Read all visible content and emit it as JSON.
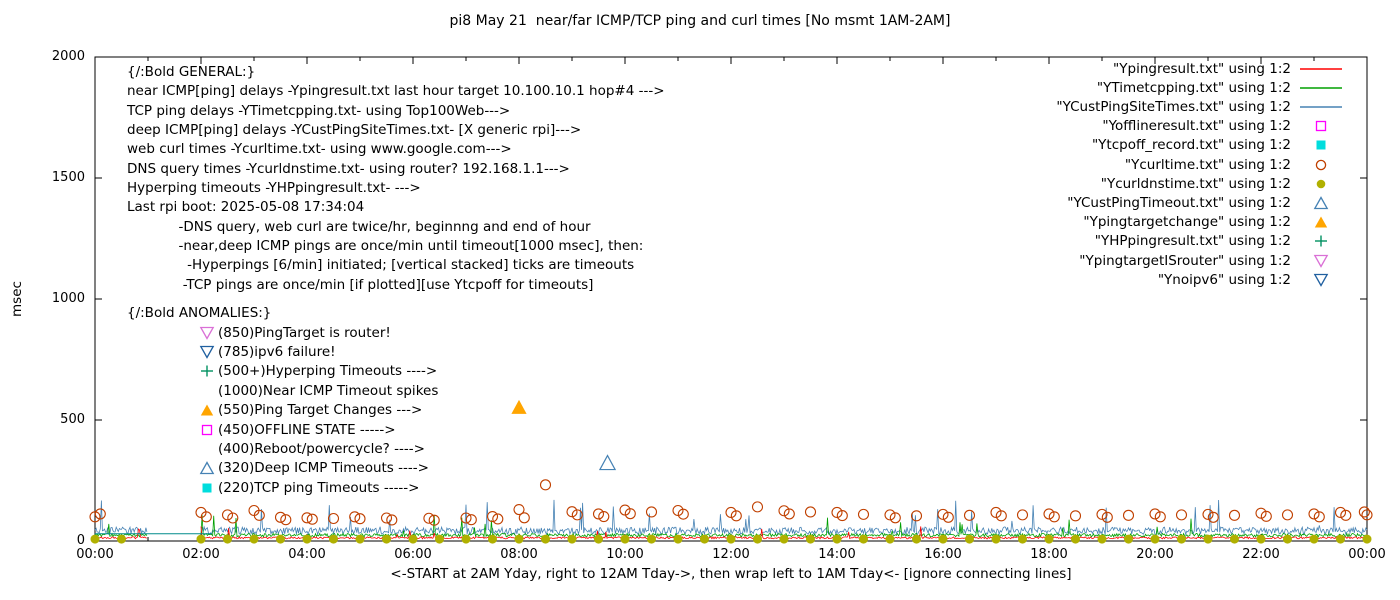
{
  "chart_data": {
    "type": "line+scatter",
    "title": "pi8 May 21  near/far ICMP/TCP ping and curl times [No msmt 1AM-2AM]",
    "xlabel": "<-START at 2AM Yday, right to 12AM Tday->, then wrap left to 1AM Tday<- [ignore connecting lines]",
    "ylabel": "msec",
    "ylim": [
      0,
      2000
    ],
    "xlim_hours": [
      0,
      24
    ],
    "y_ticks": [
      0,
      500,
      1000,
      1500,
      2000
    ],
    "x_tick_labels": [
      "00:00",
      "02:00",
      "04:00",
      "06:00",
      "08:00",
      "10:00",
      "12:00",
      "14:00",
      "16:00",
      "18:00",
      "20:00",
      "22:00",
      "00:00"
    ],
    "x_minor_tick_hours": 1,
    "grid": false,
    "no_measurement_window_hours": [
      1,
      2
    ],
    "legend_position": "top-right",
    "legend": [
      {
        "label": "\"Ypingresult.txt\" using 1:2",
        "marker": "line",
        "color": "#ff0000"
      },
      {
        "label": "\"YTimetcpping.txt\" using 1:2",
        "marker": "line",
        "color": "#00a000"
      },
      {
        "label": "\"YCustPingSiteTimes.txt\" using 1:2",
        "marker": "line",
        "color": "#4682b4"
      },
      {
        "label": "\"Yofflineresult.txt\" using 1:2",
        "marker": "square-open",
        "color": "#ff00ff"
      },
      {
        "label": "\"Ytcpoff_record.txt\" using 1:2",
        "marker": "square-filled",
        "color": "#00dddd"
      },
      {
        "label": "\"Ycurltime.txt\" using 1:2",
        "marker": "circle-open",
        "color": "#c04000"
      },
      {
        "label": "\"Ycurldnstime.txt\" using 1:2",
        "marker": "circle-filled",
        "color": "#b0b000"
      },
      {
        "label": "\"YCustPingTimeout.txt\" using 1:2",
        "marker": "triangle-up-open",
        "color": "#4682b4"
      },
      {
        "label": "\"Ypingtargetchange\" using 1:2",
        "marker": "triangle-up-filled",
        "color": "#ffa500"
      },
      {
        "label": "\"YHPpingresult.txt\" using 1:2",
        "marker": "plus",
        "color": "#009060"
      },
      {
        "label": "\"YpingtargetISrouter\" using 1:2",
        "marker": "triangle-down-open",
        "color": "#da70d6"
      },
      {
        "label": "\"Ynoipv6\" using 1:2",
        "marker": "triangle-down-open",
        "color": "#2060a0"
      }
    ],
    "series": [
      {
        "name": "YCustPingSiteTimes.txt",
        "type": "noisy-line",
        "color": "#4682b4",
        "baseline": 38,
        "noise": 30,
        "spike_chance": 0.035,
        "spike_max": 120,
        "segments": [
          [
            0,
            1
          ],
          [
            2,
            24
          ]
        ]
      },
      {
        "name": "YTimetcpping.txt",
        "type": "noisy-line",
        "color": "#00a000",
        "baseline": 22,
        "noise": 14,
        "spike_chance": 0.02,
        "spike_max": 85,
        "segments": [
          [
            0,
            1
          ],
          [
            2,
            24
          ]
        ]
      },
      {
        "name": "Ypingresult.txt",
        "type": "noisy-line",
        "color": "#ff0000",
        "baseline": 12,
        "noise": 8,
        "spike_chance": 0.012,
        "spike_max": 50,
        "segments": [
          [
            0,
            1
          ],
          [
            2,
            24
          ]
        ]
      },
      {
        "name": "flat-baseline-segment",
        "type": "line",
        "color": "#008b8b",
        "points": [
          [
            0,
            30
          ],
          [
            2.2,
            30
          ]
        ]
      },
      {
        "name": "Ycurltime.txt",
        "type": "scatter",
        "marker": "circle-open",
        "color": "#c04000",
        "size": 5,
        "points": [
          [
            0.0,
            100
          ],
          [
            0.1,
            112
          ],
          [
            2.0,
            118
          ],
          [
            2.1,
            100
          ],
          [
            2.5,
            108
          ],
          [
            2.6,
            95
          ],
          [
            3.0,
            126
          ],
          [
            3.1,
            106
          ],
          [
            3.5,
            98
          ],
          [
            3.6,
            88
          ],
          [
            4.0,
            96
          ],
          [
            4.1,
            90
          ],
          [
            4.5,
            93
          ],
          [
            4.9,
            100
          ],
          [
            5.0,
            92
          ],
          [
            5.5,
            95
          ],
          [
            5.6,
            87
          ],
          [
            6.3,
            94
          ],
          [
            6.4,
            86
          ],
          [
            7.0,
            95
          ],
          [
            7.1,
            88
          ],
          [
            7.5,
            101
          ],
          [
            7.6,
            91
          ],
          [
            8.0,
            130
          ],
          [
            8.1,
            96
          ],
          [
            8.5,
            232
          ],
          [
            9.0,
            121
          ],
          [
            9.1,
            108
          ],
          [
            9.5,
            112
          ],
          [
            9.6,
            101
          ],
          [
            10.0,
            128
          ],
          [
            10.1,
            113
          ],
          [
            10.5,
            120
          ],
          [
            11.0,
            126
          ],
          [
            11.1,
            111
          ],
          [
            12.0,
            118
          ],
          [
            12.1,
            104
          ],
          [
            12.5,
            141
          ],
          [
            13.0,
            125
          ],
          [
            13.1,
            112
          ],
          [
            13.5,
            120
          ],
          [
            14.0,
            118
          ],
          [
            14.1,
            105
          ],
          [
            14.5,
            110
          ],
          [
            15.0,
            108
          ],
          [
            15.1,
            96
          ],
          [
            15.5,
            104
          ],
          [
            16.0,
            110
          ],
          [
            16.1,
            98
          ],
          [
            16.5,
            106
          ],
          [
            17.0,
            118
          ],
          [
            17.1,
            104
          ],
          [
            17.5,
            108
          ],
          [
            18.0,
            112
          ],
          [
            18.1,
            100
          ],
          [
            18.5,
            104
          ],
          [
            19.0,
            110
          ],
          [
            19.1,
            98
          ],
          [
            19.5,
            106
          ],
          [
            20.0,
            112
          ],
          [
            20.1,
            100
          ],
          [
            20.5,
            108
          ],
          [
            21.0,
            110
          ],
          [
            21.1,
            98
          ],
          [
            21.5,
            106
          ],
          [
            22.0,
            115
          ],
          [
            22.1,
            102
          ],
          [
            22.5,
            108
          ],
          [
            23.0,
            112
          ],
          [
            23.1,
            100
          ],
          [
            23.5,
            118
          ],
          [
            23.6,
            106
          ],
          [
            23.95,
            120
          ],
          [
            24.0,
            108
          ]
        ]
      },
      {
        "name": "Ycurldnstime.txt",
        "type": "scatter",
        "marker": "circle-filled",
        "color": "#b0b000",
        "size": 4.5,
        "value": 8,
        "times": [
          0,
          0.5,
          2,
          2.5,
          3,
          3.5,
          4,
          4.5,
          5,
          5.5,
          6,
          6.5,
          7,
          7.5,
          8,
          8.5,
          9,
          9.5,
          10,
          10.5,
          11,
          11.5,
          12,
          12.5,
          13,
          13.5,
          14,
          14.5,
          15,
          15.5,
          16,
          16.5,
          17,
          17.5,
          18,
          18.5,
          19,
          19.5,
          20,
          20.5,
          21,
          21.5,
          22,
          22.5,
          23,
          23.5,
          24
        ]
      },
      {
        "name": "Ypingtargetchange",
        "type": "scatter",
        "marker": "triangle-up-filled",
        "color": "#ffa500",
        "size": 8,
        "points": [
          [
            8.0,
            550
          ]
        ]
      },
      {
        "name": "YCustPingTimeout.txt",
        "type": "scatter",
        "marker": "triangle-up-open",
        "color": "#4682b4",
        "size": 8,
        "points": [
          [
            9.67,
            320
          ]
        ]
      }
    ]
  },
  "annotations": {
    "general": {
      "heading": "{/:Bold GENERAL:}",
      "lines": [
        "near ICMP[ping] delays -Ypingresult.txt last hour target 10.100.10.1 hop#4 --->",
        "TCP ping delays -YTimetcpping.txt- using Top100Web--->",
        "deep ICMP[ping] delays -YCustPingSiteTimes.txt- [X generic rpi]--->",
        "web curl times -Ycurltime.txt- using www.google.com--->",
        "DNS query times -Ycurldnstime.txt- using router? 192.168.1.1--->",
        "Hyperping timeouts -YHPpingresult.txt- --->",
        "Last rpi boot: 2025-05-08 17:34:04",
        "            -DNS query, web curl are twice/hr, beginnng and end of hour",
        "            -near,deep ICMP pings are once/min until timeout[1000 msec], then:",
        "              -Hyperpings [6/min] initiated; [vertical stacked] ticks are timeouts",
        "             -TCP pings are once/min [if plotted][use Ytcpoff for timeouts]"
      ]
    },
    "anomalies": {
      "heading": "{/:Bold ANOMALIES:}",
      "items": [
        {
          "marker": "triangle-down-open",
          "color": "#da70d6",
          "label": "(850)PingTarget is router!"
        },
        {
          "marker": "triangle-down-open",
          "color": "#2060a0",
          "label": "(785)ipv6 failure!"
        },
        {
          "marker": "plus",
          "color": "#009060",
          "label": "(500+)Hyperping Timeouts ---->"
        },
        {
          "marker": null,
          "color": null,
          "label": "(1000)Near ICMP Timeout spikes"
        },
        {
          "marker": "triangle-up-filled",
          "color": "#ffa500",
          "label": "(550)Ping Target Changes --->"
        },
        {
          "marker": "square-open",
          "color": "#ff00ff",
          "label": "(450)OFFLINE STATE ----->"
        },
        {
          "marker": null,
          "color": null,
          "label": "(400)Reboot/powercycle? ---->"
        },
        {
          "marker": "triangle-up-open",
          "color": "#4682b4",
          "label": "(320)Deep ICMP Timeouts ---->"
        },
        {
          "marker": "square-filled",
          "color": "#00dddd",
          "label": "(220)TCP ping Timeouts ----->"
        }
      ]
    }
  }
}
